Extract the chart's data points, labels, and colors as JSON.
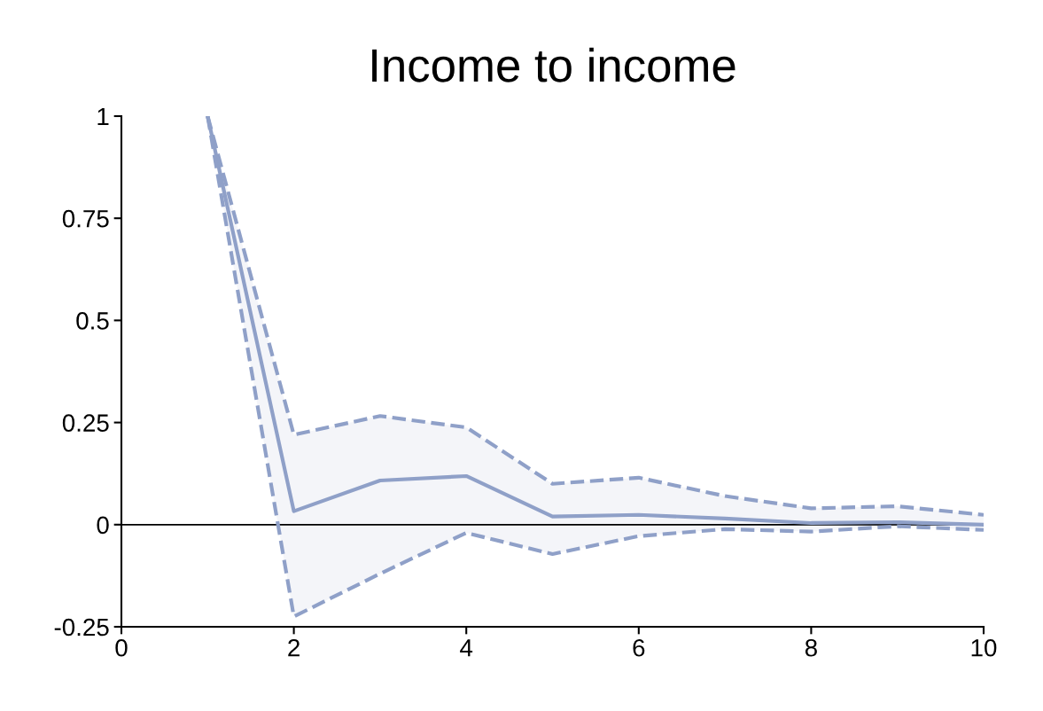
{
  "chart_data": {
    "type": "line",
    "title": "Income to income",
    "x": [
      1,
      2,
      3,
      4,
      5,
      6,
      7,
      8,
      9,
      10
    ],
    "series": [
      {
        "color": "#8fa0c8",
        "values": [
          1,
          0.033,
          0.108,
          0.119,
          0.02,
          0.024,
          0.015,
          0.004,
          0.006,
          0.0
        ],
        "upper": [
          1,
          0.22,
          0.266,
          0.238,
          0.1,
          0.115,
          0.07,
          0.04,
          0.045,
          0.024
        ],
        "lower": [
          1,
          -0.225,
          -0.12,
          -0.02,
          -0.072,
          -0.028,
          -0.011,
          -0.017,
          -0.004,
          -0.013
        ]
      },
      {
        "color": "#8fa0c8",
        "line_style": "dashed",
        "values": [
          1,
          0.22,
          0.266,
          0.238,
          0.1,
          0.115,
          0.07,
          0.04,
          0.045,
          0.024
        ]
      },
      {
        "color": "#8fa0c8",
        "line_style": "dashed",
        "values": [
          1,
          -0.225,
          -0.12,
          -0.02,
          -0.072,
          -0.028,
          -0.011,
          -0.017,
          -0.004,
          -0.013
        ]
      }
    ],
    "xlim": [
      0,
      10
    ],
    "xticks": [
      0,
      2,
      4,
      6,
      8,
      10
    ],
    "ylim": [
      -0.25,
      1
    ],
    "yticks": [
      -0.25,
      0,
      0.25,
      0.5,
      0.75,
      1
    ],
    "ref_lines": [
      {
        "axis": "y",
        "value": 0,
        "color": "#000000",
        "line_style": "solid"
      }
    ],
    "grid": false,
    "marker": "none",
    "line_style": "solid"
  }
}
